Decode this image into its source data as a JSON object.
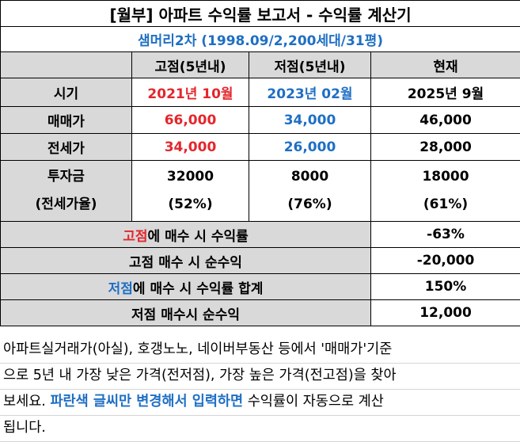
{
  "title": "[월부] 아파트 수익률 보고서 - 수익률 계산기",
  "subtitle": "샘머리2차 (1998.09/2,200세대/31평)",
  "headers": [
    "고점(5년내)",
    "저점(5년내)",
    "현재"
  ],
  "rows": {
    "period": {
      "label": "시기",
      "high": "2021년 10월",
      "low": "2023년 02월",
      "now": "2025년 9월"
    },
    "sale": {
      "label": "매매가",
      "high": "66,000",
      "low": "34,000",
      "now": "46,000"
    },
    "jeonse": {
      "label": "전세가",
      "high": "34,000",
      "low": "26,000",
      "now": "28,000"
    },
    "invest": {
      "label1": "투자금",
      "label2": "(전세가율)",
      "high1": "32000",
      "high2": "(52%)",
      "low1": "8000",
      "low2": "(76%)",
      "now1": "18000",
      "now2": "(61%)"
    }
  },
  "summary": {
    "high_rate": {
      "hl": "고점",
      "rest": "에 매수 시 수익률",
      "value": "-63%"
    },
    "high_profit": {
      "label": "고점 매수 시 순수익",
      "value": "-20,000"
    },
    "low_rate": {
      "hl": "저점",
      "rest": "에 매수 시 수익률 합계",
      "value": "150%"
    },
    "low_profit": {
      "label": "저점 매수시 순수익",
      "value": "12,000"
    }
  },
  "note": {
    "line1": "아파트실거래가(아실), 호갱노노, 네이버부동산 등에서 '매매가'기준",
    "line2": "으로 5년 내 가장 낮은 가격(전저점), 가장 높은 가격(전고점)을 찾아",
    "line3a": "보세요. ",
    "line3b": "파란색 글씨만 변경해서 입력하면",
    "line3c": " 수익률이 자동으로 계산",
    "line4": "됩니다."
  },
  "colors": {
    "red": "#e3262c",
    "blue": "#1e6fc4",
    "header_gray": "#d9d9d9"
  }
}
